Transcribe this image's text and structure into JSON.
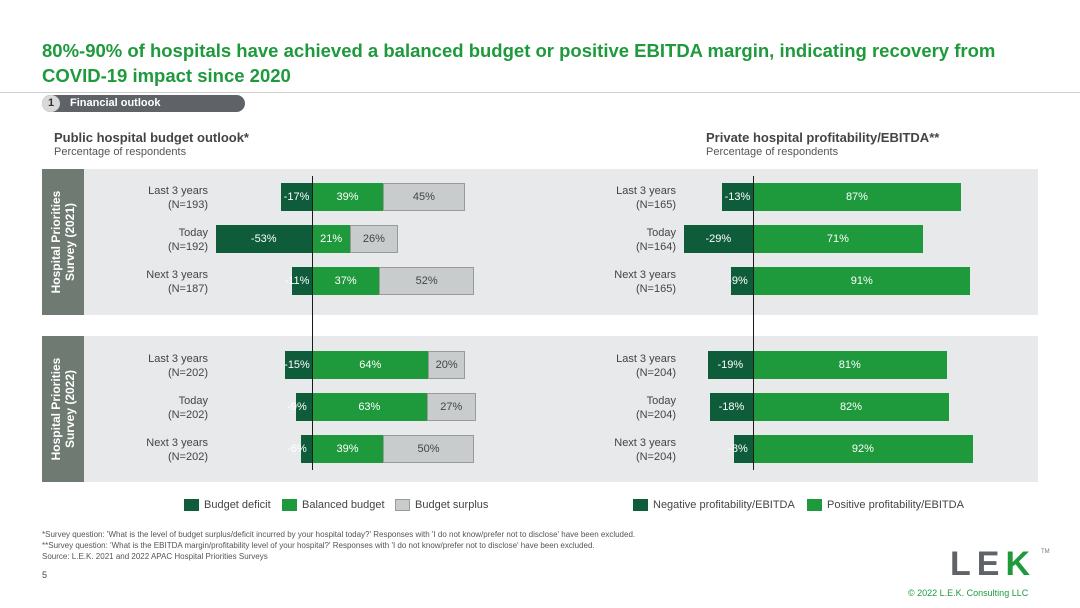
{
  "header": {
    "title": "80%-90% of hospitals have achieved a balanced budget or positive EBITDA margin, indicating recovery from COVID-19 impact since 2020",
    "section_number": "1",
    "section_label": "Financial outlook"
  },
  "public": {
    "title": "Public hospital budget outlook*",
    "subtitle": "Percentage of respondents"
  },
  "private": {
    "title": "Private hospital profitability/EBITDA**",
    "subtitle": "Percentage of respondents"
  },
  "surveys": [
    "Hospital Priorities Survey (2021)",
    "Hospital Priorities Survey (2022)"
  ],
  "colors": {
    "deficit": "#0f5c3a",
    "balanced": "#1e9a3c",
    "surplus": "#c9cccc",
    "negative": "#0f5c3a",
    "positive": "#1e9a3c",
    "panel": "#e8e9ea",
    "band": "#6e7a72"
  },
  "chart_data": [
    {
      "type": "bar",
      "stacked": "diverging",
      "title": "Public hospital budget outlook*",
      "subtitle": "Percentage of respondents",
      "series_names": [
        "Budget deficit",
        "Balanced budget",
        "Budget surplus"
      ],
      "groups": [
        {
          "survey": "Hospital Priorities Survey (2021)",
          "rows": [
            {
              "period": "Last 3 years",
              "n": "(N=193)",
              "deficit": -17,
              "balanced": 39,
              "surplus": 45
            },
            {
              "period": "Today",
              "n": "(N=192)",
              "deficit": -53,
              "balanced": 21,
              "surplus": 26
            },
            {
              "period": "Next 3 years",
              "n": "(N=187)",
              "deficit": -11,
              "balanced": 37,
              "surplus": 52
            }
          ]
        },
        {
          "survey": "Hospital Priorities Survey (2022)",
          "rows": [
            {
              "period": "Last 3 years",
              "n": "(N=202)",
              "deficit": -15,
              "balanced": 64,
              "surplus": 20
            },
            {
              "period": "Today",
              "n": "(N=202)",
              "deficit": -9,
              "balanced": 63,
              "surplus": 27
            },
            {
              "period": "Next 3 years",
              "n": "(N=202)",
              "deficit": -6,
              "balanced": 39,
              "surplus": 50
            }
          ]
        }
      ]
    },
    {
      "type": "bar",
      "stacked": "diverging",
      "title": "Private hospital profitability/EBITDA**",
      "subtitle": "Percentage of respondents",
      "series_names": [
        "Negative profitability/EBITDA",
        "Positive profitability/EBITDA"
      ],
      "groups": [
        {
          "survey": "Hospital Priorities Survey (2021)",
          "rows": [
            {
              "period": "Last 3 years",
              "n": "(N=165)",
              "negative": -13,
              "positive": 87
            },
            {
              "period": "Today",
              "n": "(N=164)",
              "negative": -29,
              "positive": 71
            },
            {
              "period": "Next 3 years",
              "n": "(N=165)",
              "negative": -9,
              "positive": 91
            }
          ]
        },
        {
          "survey": "Hospital Priorities Survey (2022)",
          "rows": [
            {
              "period": "Last 3 years",
              "n": "(N=204)",
              "negative": -19,
              "positive": 81
            },
            {
              "period": "Today",
              "n": "(N=204)",
              "negative": -18,
              "positive": 82
            },
            {
              "period": "Next 3 years",
              "n": "(N=204)",
              "negative": -8,
              "positive": 92
            }
          ]
        }
      ]
    }
  ],
  "legend": {
    "public": [
      "Budget deficit",
      "Balanced budget",
      "Budget surplus"
    ],
    "private": [
      "Negative profitability/EBITDA",
      "Positive profitability/EBITDA"
    ]
  },
  "footnotes": {
    "line1": "*Survey question: 'What is the level of budget surplus/deficit incurred by your hospital today?' Responses with 'I do not know/prefer not to disclose' have been excluded.",
    "line2": "**Survey question: 'What is the EBITDA margin/profitability level of your hospital?' Responses with 'I do not know/prefer not to disclose' have been excluded.",
    "line3": "Source:  L.E.K. 2021 and 2022 APAC Hospital Priorities Surveys"
  },
  "footer": {
    "page_number": "5",
    "logo_l": "L",
    "logo_e": "E",
    "logo_k": "K",
    "tm": "TM",
    "copyright": "© 2022 L.E.K. Consulting LLC"
  }
}
